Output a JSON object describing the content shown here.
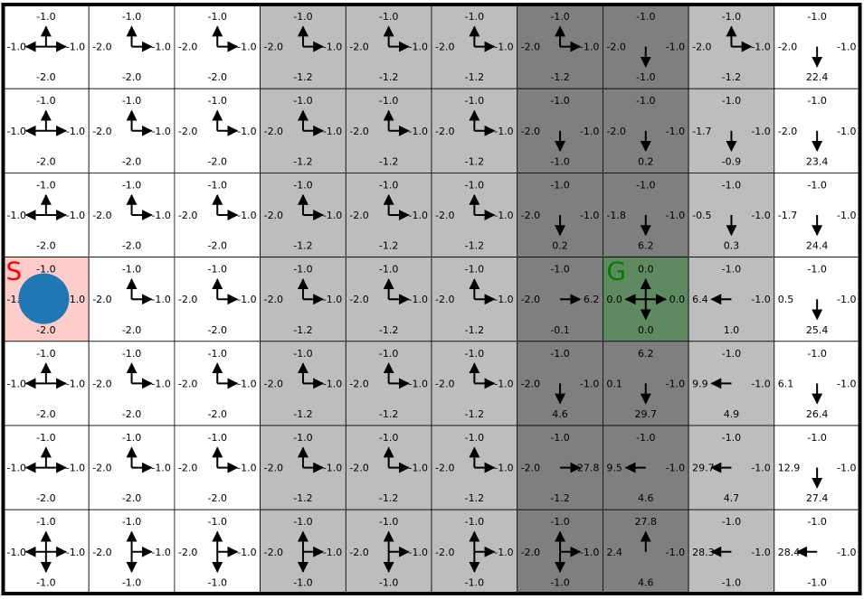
{
  "colors": {
    "column_shades": [
      "#ffffff",
      "#ffffff",
      "#ffffff",
      "#bdbdbd",
      "#bdbdbd",
      "#bdbdbd",
      "#7f7f7f",
      "#7f7f7f",
      "#bdbdbd",
      "#ffffff"
    ],
    "start_cell": "#ffcccc",
    "goal_cell": "#5f8a5f",
    "start_text": "#ff0000",
    "goal_text": "#008000",
    "agent": "#1f77b4"
  },
  "grid": {
    "rows": 7,
    "cols": 10,
    "start": {
      "row": 3,
      "col": 0,
      "label": "S"
    },
    "goal": {
      "row": 3,
      "col": 7,
      "label": "G"
    },
    "agent": {
      "row": 3,
      "col": 0
    }
  },
  "cells": [
    [
      {
        "up": "-1.0",
        "left": "-1.0",
        "right": "-1.0",
        "down": "-2.0",
        "arrows": [
          "up",
          "left",
          "right"
        ]
      },
      {
        "up": "-1.0",
        "left": "-2.0",
        "right": "-1.0",
        "down": "-2.0",
        "arrows": [
          "up",
          "right"
        ]
      },
      {
        "up": "-1.0",
        "left": "-2.0",
        "right": "-1.0",
        "down": "-2.0",
        "arrows": [
          "up",
          "right"
        ]
      },
      {
        "up": "-1.0",
        "left": "-2.0",
        "right": "-1.0",
        "down": "-1.2",
        "arrows": [
          "up",
          "right"
        ]
      },
      {
        "up": "-1.0",
        "left": "-2.0",
        "right": "-1.0",
        "down": "-1.2",
        "arrows": [
          "up",
          "right"
        ]
      },
      {
        "up": "-1.0",
        "left": "-2.0",
        "right": "-1.0",
        "down": "-1.2",
        "arrows": [
          "up",
          "right"
        ]
      },
      {
        "up": "-1.0",
        "left": "-2.0",
        "right": "-1.0",
        "down": "-1.2",
        "arrows": [
          "up",
          "right"
        ]
      },
      {
        "up": "-1.0",
        "left": "-2.0",
        "right": "-1.0",
        "down": "-1.0",
        "arrows": [
          "down"
        ]
      },
      {
        "up": "-1.0",
        "left": "-2.0",
        "right": "-1.0",
        "down": "-1.2",
        "arrows": [
          "up",
          "right"
        ]
      },
      {
        "up": "-1.0",
        "left": "-2.0",
        "right": "-1.0",
        "down": "22.4",
        "arrows": [
          "down"
        ]
      }
    ],
    [
      {
        "up": "-1.0",
        "left": "-1.0",
        "right": "-1.0",
        "down": "-2.0",
        "arrows": [
          "up",
          "left",
          "right"
        ]
      },
      {
        "up": "-1.0",
        "left": "-2.0",
        "right": "-1.0",
        "down": "-2.0",
        "arrows": [
          "up",
          "right"
        ]
      },
      {
        "up": "-1.0",
        "left": "-2.0",
        "right": "-1.0",
        "down": "-2.0",
        "arrows": [
          "up",
          "right"
        ]
      },
      {
        "up": "-1.0",
        "left": "-2.0",
        "right": "-1.0",
        "down": "-1.2",
        "arrows": [
          "up",
          "right"
        ]
      },
      {
        "up": "-1.0",
        "left": "-2.0",
        "right": "-1.0",
        "down": "-1.2",
        "arrows": [
          "up",
          "right"
        ]
      },
      {
        "up": "-1.0",
        "left": "-2.0",
        "right": "-1.0",
        "down": "-1.2",
        "arrows": [
          "up",
          "right"
        ]
      },
      {
        "up": "-1.0",
        "left": "-2.0",
        "right": "-1.0",
        "down": "-1.0",
        "arrows": [
          "down"
        ]
      },
      {
        "up": "-1.0",
        "left": "-2.0",
        "right": "-1.0",
        "down": "0.2",
        "arrows": [
          "down"
        ]
      },
      {
        "up": "-1.0",
        "left": "-1.7",
        "right": "-1.0",
        "down": "-0.9",
        "arrows": [
          "down"
        ]
      },
      {
        "up": "-1.0",
        "left": "-2.0",
        "right": "-1.0",
        "down": "23.4",
        "arrows": [
          "down"
        ]
      }
    ],
    [
      {
        "up": "-1.0",
        "left": "-1.0",
        "right": "-1.0",
        "down": "-2.0",
        "arrows": [
          "up",
          "left",
          "right"
        ]
      },
      {
        "up": "-1.0",
        "left": "-2.0",
        "right": "-1.0",
        "down": "-2.0",
        "arrows": [
          "up",
          "right"
        ]
      },
      {
        "up": "-1.0",
        "left": "-2.0",
        "right": "-1.0",
        "down": "-2.0",
        "arrows": [
          "up",
          "right"
        ]
      },
      {
        "up": "-1.0",
        "left": "-2.0",
        "right": "-1.0",
        "down": "-1.2",
        "arrows": [
          "up",
          "right"
        ]
      },
      {
        "up": "-1.0",
        "left": "-2.0",
        "right": "-1.0",
        "down": "-1.2",
        "arrows": [
          "up",
          "right"
        ]
      },
      {
        "up": "-1.0",
        "left": "-2.0",
        "right": "-1.0",
        "down": "-1.2",
        "arrows": [
          "up",
          "right"
        ]
      },
      {
        "up": "-1.0",
        "left": "-2.0",
        "right": "-1.0",
        "down": "0.2",
        "arrows": [
          "down"
        ]
      },
      {
        "up": "-1.0",
        "left": "-1.8",
        "right": "-1.0",
        "down": "6.2",
        "arrows": [
          "down"
        ]
      },
      {
        "up": "-1.0",
        "left": "-0.5",
        "right": "-1.0",
        "down": "0.3",
        "arrows": [
          "down"
        ]
      },
      {
        "up": "-1.0",
        "left": "-1.7",
        "right": "-1.0",
        "down": "24.4",
        "arrows": [
          "down"
        ]
      }
    ],
    [
      {
        "up": "-1.0",
        "left": "-1.0",
        "right": "-1.0",
        "down": "-2.0",
        "arrows": [
          "up",
          "left",
          "right"
        ]
      },
      {
        "up": "-1.0",
        "left": "-2.0",
        "right": "-1.0",
        "down": "-2.0",
        "arrows": [
          "up",
          "right"
        ]
      },
      {
        "up": "-1.0",
        "left": "-2.0",
        "right": "-1.0",
        "down": "-2.0",
        "arrows": [
          "up",
          "right"
        ]
      },
      {
        "up": "-1.0",
        "left": "-2.0",
        "right": "-1.0",
        "down": "-1.2",
        "arrows": [
          "up",
          "right"
        ]
      },
      {
        "up": "-1.0",
        "left": "-2.0",
        "right": "-1.0",
        "down": "-1.2",
        "arrows": [
          "up",
          "right"
        ]
      },
      {
        "up": "-1.0",
        "left": "-2.0",
        "right": "-1.0",
        "down": "-1.2",
        "arrows": [
          "up",
          "right"
        ]
      },
      {
        "up": "-1.0",
        "left": "-2.0",
        "right": "6.2",
        "down": "-0.1",
        "arrows": [
          "right"
        ]
      },
      {
        "up": "0.0",
        "left": "0.0",
        "right": "0.0",
        "down": "0.0",
        "arrows": [
          "up",
          "down",
          "left",
          "right"
        ]
      },
      {
        "up": "-1.0",
        "left": "6.4",
        "right": "-1.0",
        "down": "1.0",
        "arrows": [
          "left"
        ]
      },
      {
        "up": "-1.0",
        "left": "0.5",
        "right": "-1.0",
        "down": "25.4",
        "arrows": [
          "down"
        ]
      }
    ],
    [
      {
        "up": "-1.0",
        "left": "-1.0",
        "right": "-1.0",
        "down": "-2.0",
        "arrows": [
          "up",
          "left",
          "right"
        ]
      },
      {
        "up": "-1.0",
        "left": "-2.0",
        "right": "-1.0",
        "down": "-2.0",
        "arrows": [
          "up",
          "right"
        ]
      },
      {
        "up": "-1.0",
        "left": "-2.0",
        "right": "-1.0",
        "down": "-2.0",
        "arrows": [
          "up",
          "right"
        ]
      },
      {
        "up": "-1.0",
        "left": "-2.0",
        "right": "-1.0",
        "down": "-1.2",
        "arrows": [
          "up",
          "right"
        ]
      },
      {
        "up": "-1.0",
        "left": "-2.0",
        "right": "-1.0",
        "down": "-1.2",
        "arrows": [
          "up",
          "right"
        ]
      },
      {
        "up": "-1.0",
        "left": "-2.0",
        "right": "-1.0",
        "down": "-1.2",
        "arrows": [
          "up",
          "right"
        ]
      },
      {
        "up": "-1.0",
        "left": "-2.0",
        "right": "-1.0",
        "down": "4.6",
        "arrows": [
          "down"
        ]
      },
      {
        "up": "6.2",
        "left": "0.1",
        "right": "-1.0",
        "down": "29.7",
        "arrows": [
          "down"
        ]
      },
      {
        "up": "-1.0",
        "left": "9.9",
        "right": "-1.0",
        "down": "4.9",
        "arrows": [
          "left"
        ]
      },
      {
        "up": "-1.0",
        "left": "6.1",
        "right": "-1.0",
        "down": "26.4",
        "arrows": [
          "down"
        ]
      }
    ],
    [
      {
        "up": "-1.0",
        "left": "-1.0",
        "right": "-1.0",
        "down": "-2.0",
        "arrows": [
          "up",
          "left",
          "right"
        ]
      },
      {
        "up": "-1.0",
        "left": "-2.0",
        "right": "-1.0",
        "down": "-2.0",
        "arrows": [
          "up",
          "right"
        ]
      },
      {
        "up": "-1.0",
        "left": "-2.0",
        "right": "-1.0",
        "down": "-2.0",
        "arrows": [
          "up",
          "right"
        ]
      },
      {
        "up": "-1.0",
        "left": "-2.0",
        "right": "-1.0",
        "down": "-1.2",
        "arrows": [
          "up",
          "right"
        ]
      },
      {
        "up": "-1.0",
        "left": "-2.0",
        "right": "-1.0",
        "down": "-1.2",
        "arrows": [
          "up",
          "right"
        ]
      },
      {
        "up": "-1.0",
        "left": "-2.0",
        "right": "-1.0",
        "down": "-1.2",
        "arrows": [
          "up",
          "right"
        ]
      },
      {
        "up": "-1.0",
        "left": "-2.0",
        "right": "27.8",
        "down": "-1.2",
        "arrows": [
          "right"
        ]
      },
      {
        "up": "-1.0",
        "left": "9.5",
        "right": "-1.0",
        "down": "4.6",
        "arrows": [
          "left"
        ]
      },
      {
        "up": "-1.0",
        "left": "29.7",
        "right": "-1.0",
        "down": "4.7",
        "arrows": [
          "left"
        ]
      },
      {
        "up": "-1.0",
        "left": "12.9",
        "right": "-1.0",
        "down": "27.4",
        "arrows": [
          "down"
        ]
      }
    ],
    [
      {
        "up": "-1.0",
        "left": "-1.0",
        "right": "-1.0",
        "down": "-1.0",
        "arrows": [
          "up",
          "down",
          "left",
          "right"
        ]
      },
      {
        "up": "-1.0",
        "left": "-2.0",
        "right": "-1.0",
        "down": "-1.0",
        "arrows": [
          "up",
          "down",
          "right"
        ]
      },
      {
        "up": "-1.0",
        "left": "-2.0",
        "right": "-1.0",
        "down": "-1.0",
        "arrows": [
          "up",
          "down",
          "right"
        ]
      },
      {
        "up": "-1.0",
        "left": "-2.0",
        "right": "-1.0",
        "down": "-1.0",
        "arrows": [
          "up",
          "down",
          "right"
        ]
      },
      {
        "up": "-1.0",
        "left": "-2.0",
        "right": "-1.0",
        "down": "-1.0",
        "arrows": [
          "up",
          "down",
          "right"
        ]
      },
      {
        "up": "-1.0",
        "left": "-2.0",
        "right": "-1.0",
        "down": "-1.0",
        "arrows": [
          "up",
          "down",
          "right"
        ]
      },
      {
        "up": "-1.0",
        "left": "-2.0",
        "right": "-1.0",
        "down": "-1.0",
        "arrows": [
          "up",
          "down",
          "right"
        ]
      },
      {
        "up": "27.8",
        "left": "2.4",
        "right": "-1.0",
        "down": "4.6",
        "arrows": [
          "up"
        ]
      },
      {
        "up": "-1.0",
        "left": "28.3",
        "right": "-1.0",
        "down": "-1.0",
        "arrows": [
          "left"
        ]
      },
      {
        "up": "-1.0",
        "left": "28.4",
        "right": "-1.0",
        "down": "-1.0",
        "arrows": [
          "left"
        ]
      }
    ]
  ]
}
